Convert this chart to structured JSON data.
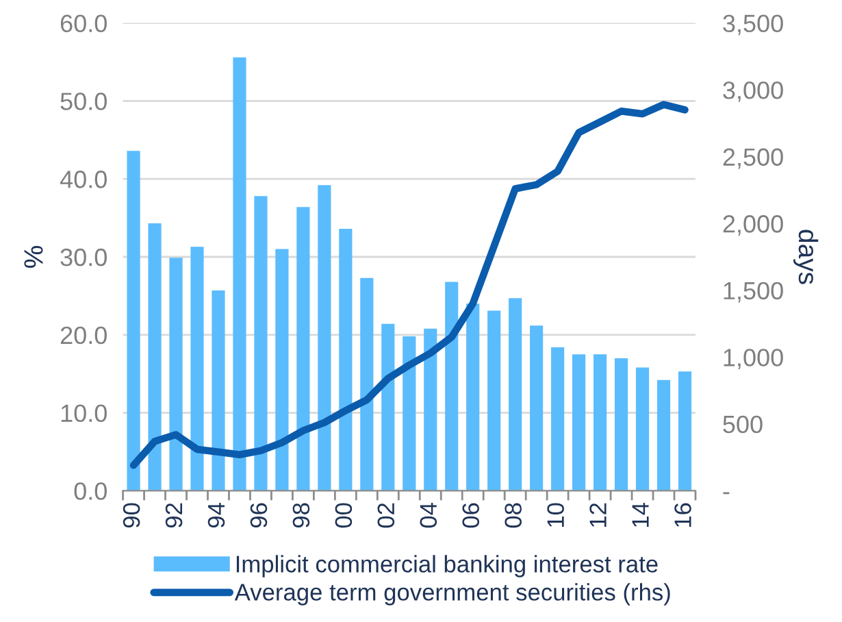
{
  "chart_data": {
    "type": "bar",
    "categories": [
      "90",
      null,
      "92",
      null,
      "94",
      null,
      "96",
      null,
      "98",
      null,
      "00",
      null,
      "02",
      null,
      "04",
      null,
      "06",
      null,
      "08",
      null,
      "10",
      null,
      "12",
      null,
      "14",
      null,
      "16"
    ],
    "series": [
      {
        "name": "Implicit commercial banking interest rate",
        "color": "#5bbcfd",
        "values": [
          43.6,
          34.3,
          29.9,
          31.3,
          25.7,
          55.6,
          37.8,
          31.0,
          36.4,
          39.2,
          33.6,
          27.3,
          21.4,
          19.8,
          20.8,
          26.8,
          24.0,
          23.1,
          24.7,
          21.2,
          18.4,
          17.5,
          17.5,
          17.0,
          15.8,
          14.2,
          15.3
        ]
      },
      {
        "name": "Average term government securities (rhs)",
        "type": "line",
        "axis": "y2",
        "color": "#0b5cad",
        "values": [
          190,
          370,
          420,
          310,
          290,
          270,
          300,
          360,
          450,
          510,
          600,
          680,
          840,
          940,
          1030,
          1150,
          1400,
          1830,
          2260,
          2290,
          2390,
          2680,
          2760,
          2840,
          2820,
          2890,
          2850
        ]
      }
    ],
    "ylabel": "%",
    "y2label": "days",
    "ylim": [
      0,
      60
    ],
    "yticks": [
      {
        "value": 0,
        "label": "0.0"
      },
      {
        "value": 10,
        "label": "10.0"
      },
      {
        "value": 20,
        "label": "20.0"
      },
      {
        "value": 30,
        "label": "30.0"
      },
      {
        "value": 40,
        "label": "40.0"
      },
      {
        "value": 50,
        "label": "50.0"
      },
      {
        "value": 60,
        "label": "60.0"
      }
    ],
    "y2lim": [
      0,
      3500
    ],
    "y2ticks": [
      {
        "value": 0,
        "label": "-"
      },
      500,
      {
        "value": 1000,
        "label": "1,000"
      },
      {
        "value": 1500,
        "label": "1,500"
      },
      {
        "value": 2000,
        "label": "2,000"
      },
      {
        "value": 2500,
        "label": "2,500"
      },
      {
        "value": 3000,
        "label": "3,000"
      },
      {
        "value": 3500,
        "label": "3,500"
      }
    ],
    "grid": "y",
    "legend": "bottom",
    "line_style": "solid"
  }
}
